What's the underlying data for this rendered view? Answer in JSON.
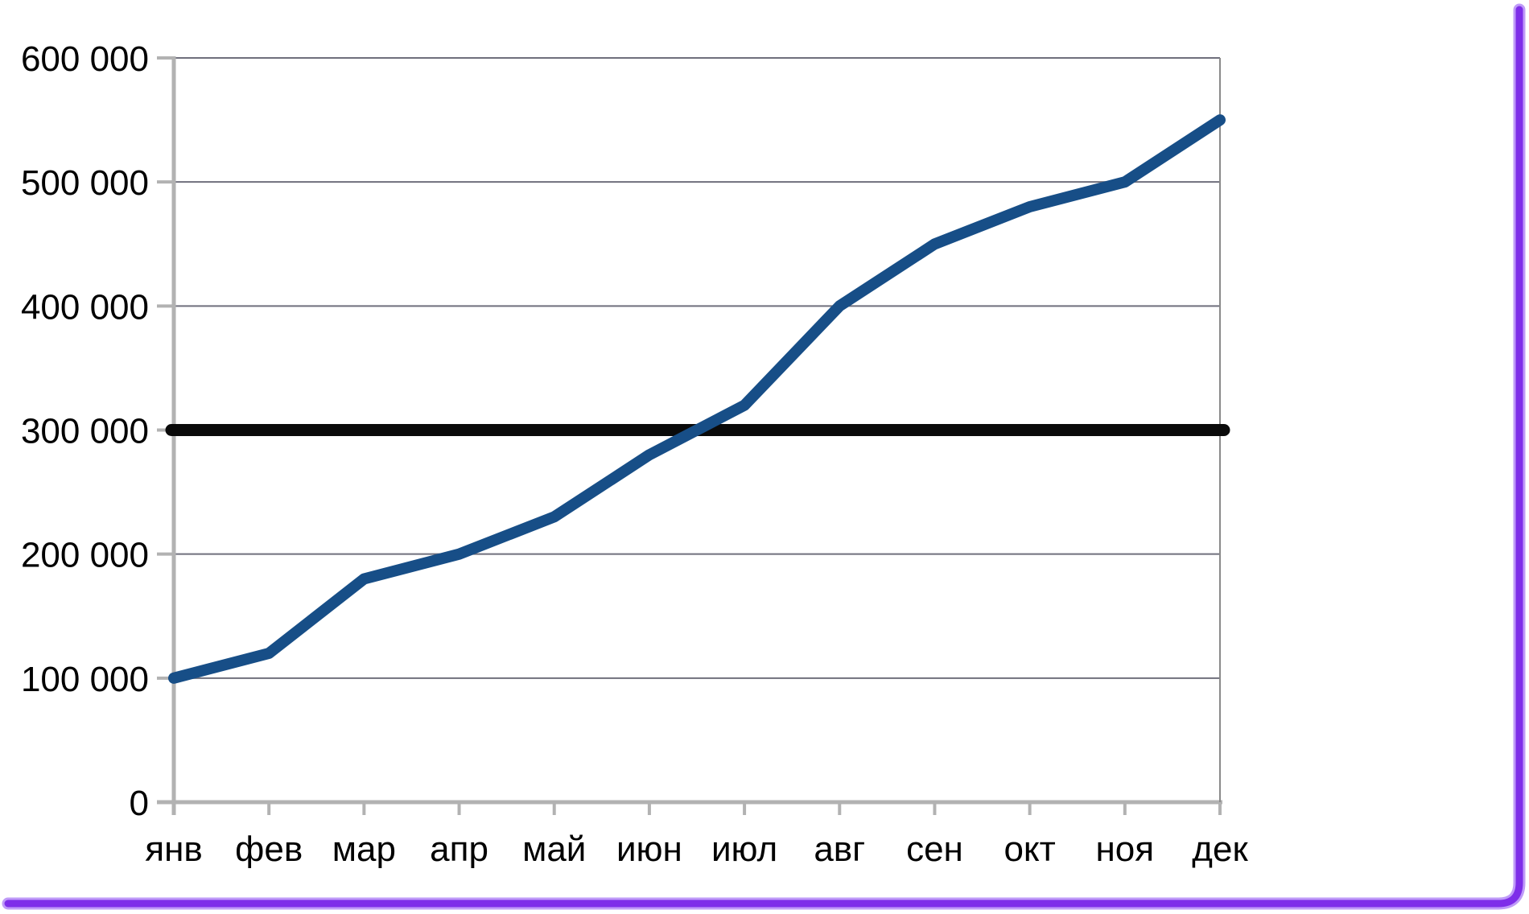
{
  "chart_data": {
    "type": "line",
    "title": "",
    "xlabel": "",
    "ylabel": "",
    "categories": [
      "янв",
      "фев",
      "мар",
      "апр",
      "май",
      "июн",
      "июл",
      "авг",
      "сен",
      "окт",
      "ноя",
      "дек"
    ],
    "series": [
      {
        "name": "monthly-values-line",
        "values": [
          100000,
          120000,
          180000,
          200000,
          230000,
          280000,
          320000,
          400000,
          450000,
          480000,
          500000,
          550000
        ],
        "color": "#174e87"
      }
    ],
    "threshold_line": {
      "value": 300000,
      "color": "#0a0a0a"
    },
    "ylim": [
      0,
      600000
    ],
    "ytick_interval": 100000,
    "ytick_labels": [
      "0",
      "100 000",
      "200 000",
      "300 000",
      "400 000",
      "500 000",
      "600 000"
    ],
    "grid": true,
    "legend": false
  },
  "colors": {
    "background": "#ffffff",
    "grid": "#6f6f7c",
    "axis": "#b2b2b2",
    "plot_border": "#8a8a8a",
    "series_blue": "#174e87",
    "threshold_black": "#0a0a0a",
    "frame_purple": "#7e2ee9",
    "frame_purple_glow": "#bf9bf8",
    "text": "#000000"
  }
}
